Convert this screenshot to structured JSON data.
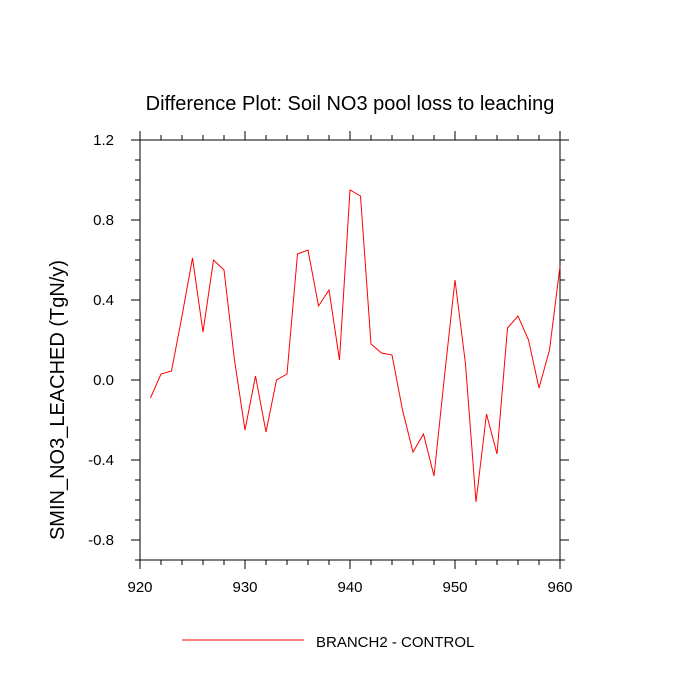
{
  "chart_data": {
    "type": "line",
    "title": "Difference Plot: Soil NO3 pool loss to leaching",
    "xlabel": "",
    "ylabel": "SMIN_NO3_LEACHED  (TgN/y)",
    "xlim": [
      920,
      960
    ],
    "ylim": [
      -0.9,
      1.2
    ],
    "xticks": [
      920,
      930,
      940,
      950,
      960
    ],
    "xtick_labels": [
      "920",
      "930",
      "940",
      "950",
      "960"
    ],
    "yticks": [
      -0.8,
      -0.4,
      0.0,
      0.4,
      0.8,
      1.2
    ],
    "ytick_labels": [
      "-0.8",
      "-0.4",
      "0.0",
      "0.4",
      "0.8",
      "1.2"
    ],
    "grid": false,
    "legend_position": "bottom-center",
    "series": [
      {
        "name": "BRANCH2 - CONTROL",
        "color": "#ff0000",
        "x": [
          921,
          922,
          923,
          924,
          925,
          926,
          927,
          928,
          929,
          930,
          931,
          932,
          933,
          934,
          935,
          936,
          937,
          938,
          939,
          940,
          941,
          942,
          943,
          944,
          945,
          946,
          947,
          948,
          949,
          950,
          951,
          952,
          953,
          954,
          955,
          956,
          957,
          958,
          959,
          960
        ],
        "values": [
          -0.09,
          0.03,
          0.045,
          0.32,
          0.61,
          0.24,
          0.6,
          0.55,
          0.1,
          -0.25,
          0.02,
          -0.26,
          0.0,
          0.03,
          0.63,
          0.65,
          0.37,
          0.45,
          0.1,
          0.95,
          0.92,
          0.18,
          0.135,
          0.125,
          -0.15,
          -0.36,
          -0.27,
          -0.48,
          0.02,
          0.5,
          0.08,
          -0.61,
          -0.17,
          -0.37,
          0.26,
          0.32,
          0.2,
          -0.04,
          0.15,
          0.57
        ]
      }
    ]
  }
}
